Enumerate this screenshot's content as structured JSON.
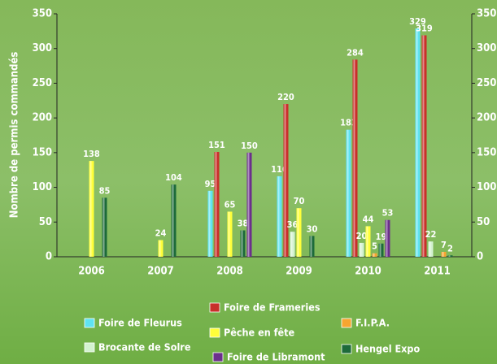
{
  "chart_data": {
    "type": "bar",
    "y_label": "Nombre de permis commandés",
    "categories": [
      "2006",
      "2007",
      "2008",
      "2009",
      "2010",
      "2011"
    ],
    "series": [
      {
        "name": "Foire de Fleurus",
        "color": "#5fe3f2",
        "values": [
          null,
          null,
          95,
          116,
          183,
          329
        ]
      },
      {
        "name": "Foire de Frameries",
        "color": "#c8302a",
        "values": [
          null,
          null,
          151,
          220,
          284,
          319
        ]
      },
      {
        "name": "Brocante de Solre",
        "color": "#d3f2d0",
        "values": [
          null,
          null,
          null,
          36,
          20,
          22
        ]
      },
      {
        "name": "Pêche en fête",
        "color": "#ffff3a",
        "values": [
          138,
          24,
          65,
          70,
          44,
          null
        ]
      },
      {
        "name": "F.I.P.A.",
        "color": "#f7a530",
        "values": [
          null,
          null,
          null,
          null,
          5,
          7
        ]
      },
      {
        "name": "Hengel Expo",
        "color": "#1d6a3a",
        "values": [
          85,
          104,
          38,
          30,
          19,
          2
        ]
      },
      {
        "name": "Foire de Libramont",
        "color": "#6b2f8c",
        "values": [
          null,
          null,
          150,
          null,
          53,
          null
        ]
      }
    ],
    "ylim": [
      0,
      350
    ],
    "yticks": [
      0,
      50,
      100,
      150,
      200,
      250,
      300,
      350
    ],
    "grid": false
  }
}
